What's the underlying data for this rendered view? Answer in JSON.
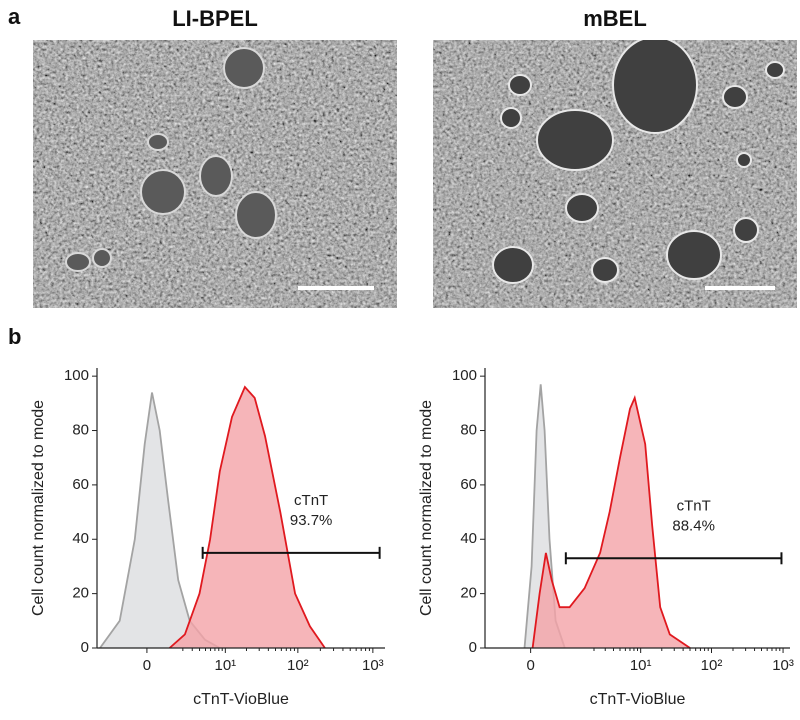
{
  "panel_a": {
    "label": "a",
    "images": [
      {
        "title": "LI-BPEL"
      },
      {
        "title": "mBEL"
      }
    ]
  },
  "panel_b": {
    "label": "b"
  },
  "chart_data": [
    {
      "type": "area",
      "xscale": "symlog",
      "linthresh": 1,
      "xlabel": "cTnT-VioBlue",
      "ylabel": "Cell count normalized to mode",
      "xlim": [
        -3.6,
        1450
      ],
      "ylim": [
        0,
        103
      ],
      "xticks": [
        0,
        {
          "value": 10,
          "label": "10¹"
        },
        {
          "value": 100,
          "label": "10²"
        },
        {
          "value": 1000,
          "label": "10³"
        }
      ],
      "yticks": [
        0,
        20,
        40,
        60,
        80,
        100
      ],
      "series": [
        {
          "color": "#a3a3a3",
          "fill": "#dcdde0",
          "x": [
            -3.2,
            -1.3,
            -0.45,
            -0.07,
            0.17,
            0.48,
            0.9,
            1.6,
            2.7,
            4.9,
            8.3
          ],
          "values": [
            0,
            10,
            40,
            75,
            94,
            80,
            55,
            25,
            10,
            3,
            0
          ]
        },
        {
          "color": "#e0191f",
          "fill": "#f4a3a8",
          "x": [
            1.0,
            2.2,
            4,
            5.9,
            8.3,
            12.5,
            19,
            26,
            36,
            58,
            92,
            145,
            230
          ],
          "values": [
            0,
            5,
            20,
            40,
            65,
            85,
            96,
            92,
            78,
            50,
            20,
            8,
            0
          ]
        }
      ],
      "gate": {
        "name": "cTnT",
        "value": 93.7,
        "value_label": "93.7%",
        "x": [
          4.5,
          1230
        ],
        "y": 35
      }
    },
    {
      "type": "area",
      "xscale": "symlog",
      "linthresh": 0.3,
      "xlabel": "cTnT-VioBlue",
      "ylabel": "Cell count normalized to mode",
      "xlim": [
        -1,
        1250
      ],
      "ylim": [
        0,
        103
      ],
      "xticks": [
        0,
        {
          "value": 10,
          "label": "10¹"
        },
        {
          "value": 100,
          "label": "10²"
        },
        {
          "value": 1000,
          "label": "10³"
        }
      ],
      "yticks": [
        0,
        20,
        40,
        60,
        80,
        100
      ],
      "series": [
        {
          "color": "#a3a3a3",
          "fill": "#dcdde0",
          "x": [
            -0.065,
            0.01,
            0.064,
            0.114,
            0.17,
            0.25,
            0.37,
            0.6
          ],
          "values": [
            0,
            30,
            80,
            97,
            80,
            40,
            10,
            0
          ]
        },
        {
          "color": "#e0191f",
          "fill": "#f4a3a8",
          "x": [
            0.02,
            0.1,
            0.19,
            0.29,
            0.46,
            0.75,
            1.4,
            2.5,
            3.5,
            5.0,
            7.0,
            8.2,
            11.6,
            14.6,
            19,
            26,
            50
          ],
          "values": [
            0,
            20,
            35,
            25,
            15,
            15,
            22,
            35,
            50,
            70,
            88,
            92,
            75,
            45,
            15,
            5,
            0
          ]
        }
      ],
      "gate": {
        "name": "cTnT",
        "value": 88.4,
        "value_label": "88.4%",
        "x": [
          0.63,
          950
        ],
        "y": 33
      }
    }
  ]
}
